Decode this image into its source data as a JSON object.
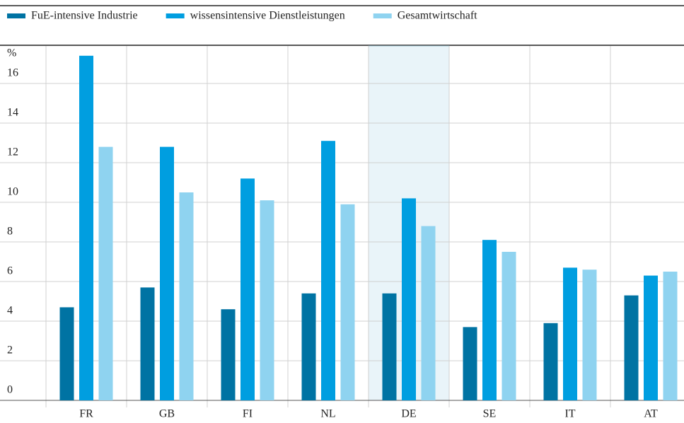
{
  "chart_data": {
    "type": "bar",
    "y_unit_label": "%",
    "categories": [
      "FR",
      "GB",
      "FI",
      "NL",
      "DE",
      "SE",
      "IT",
      "AT"
    ],
    "series": [
      {
        "name": "FuE-intensive Industrie",
        "color": "#0073a3",
        "values": [
          4.7,
          5.7,
          4.6,
          5.4,
          5.4,
          3.7,
          3.9,
          5.3
        ]
      },
      {
        "name": "wissensintensive Dienstleistungen",
        "color": "#009ee0",
        "values": [
          17.4,
          12.8,
          11.2,
          13.1,
          10.2,
          8.1,
          6.7,
          6.3
        ]
      },
      {
        "name": "Gesamtwirtschaft",
        "color": "#8fd3f0",
        "values": [
          12.8,
          10.5,
          10.1,
          9.9,
          8.8,
          7.5,
          6.6,
          6.5
        ]
      }
    ],
    "ylim": [
      0,
      18
    ],
    "yticks": [
      0,
      2,
      4,
      6,
      8,
      10,
      12,
      14,
      16
    ],
    "grid": true,
    "highlight": "DE",
    "legend": "top"
  }
}
